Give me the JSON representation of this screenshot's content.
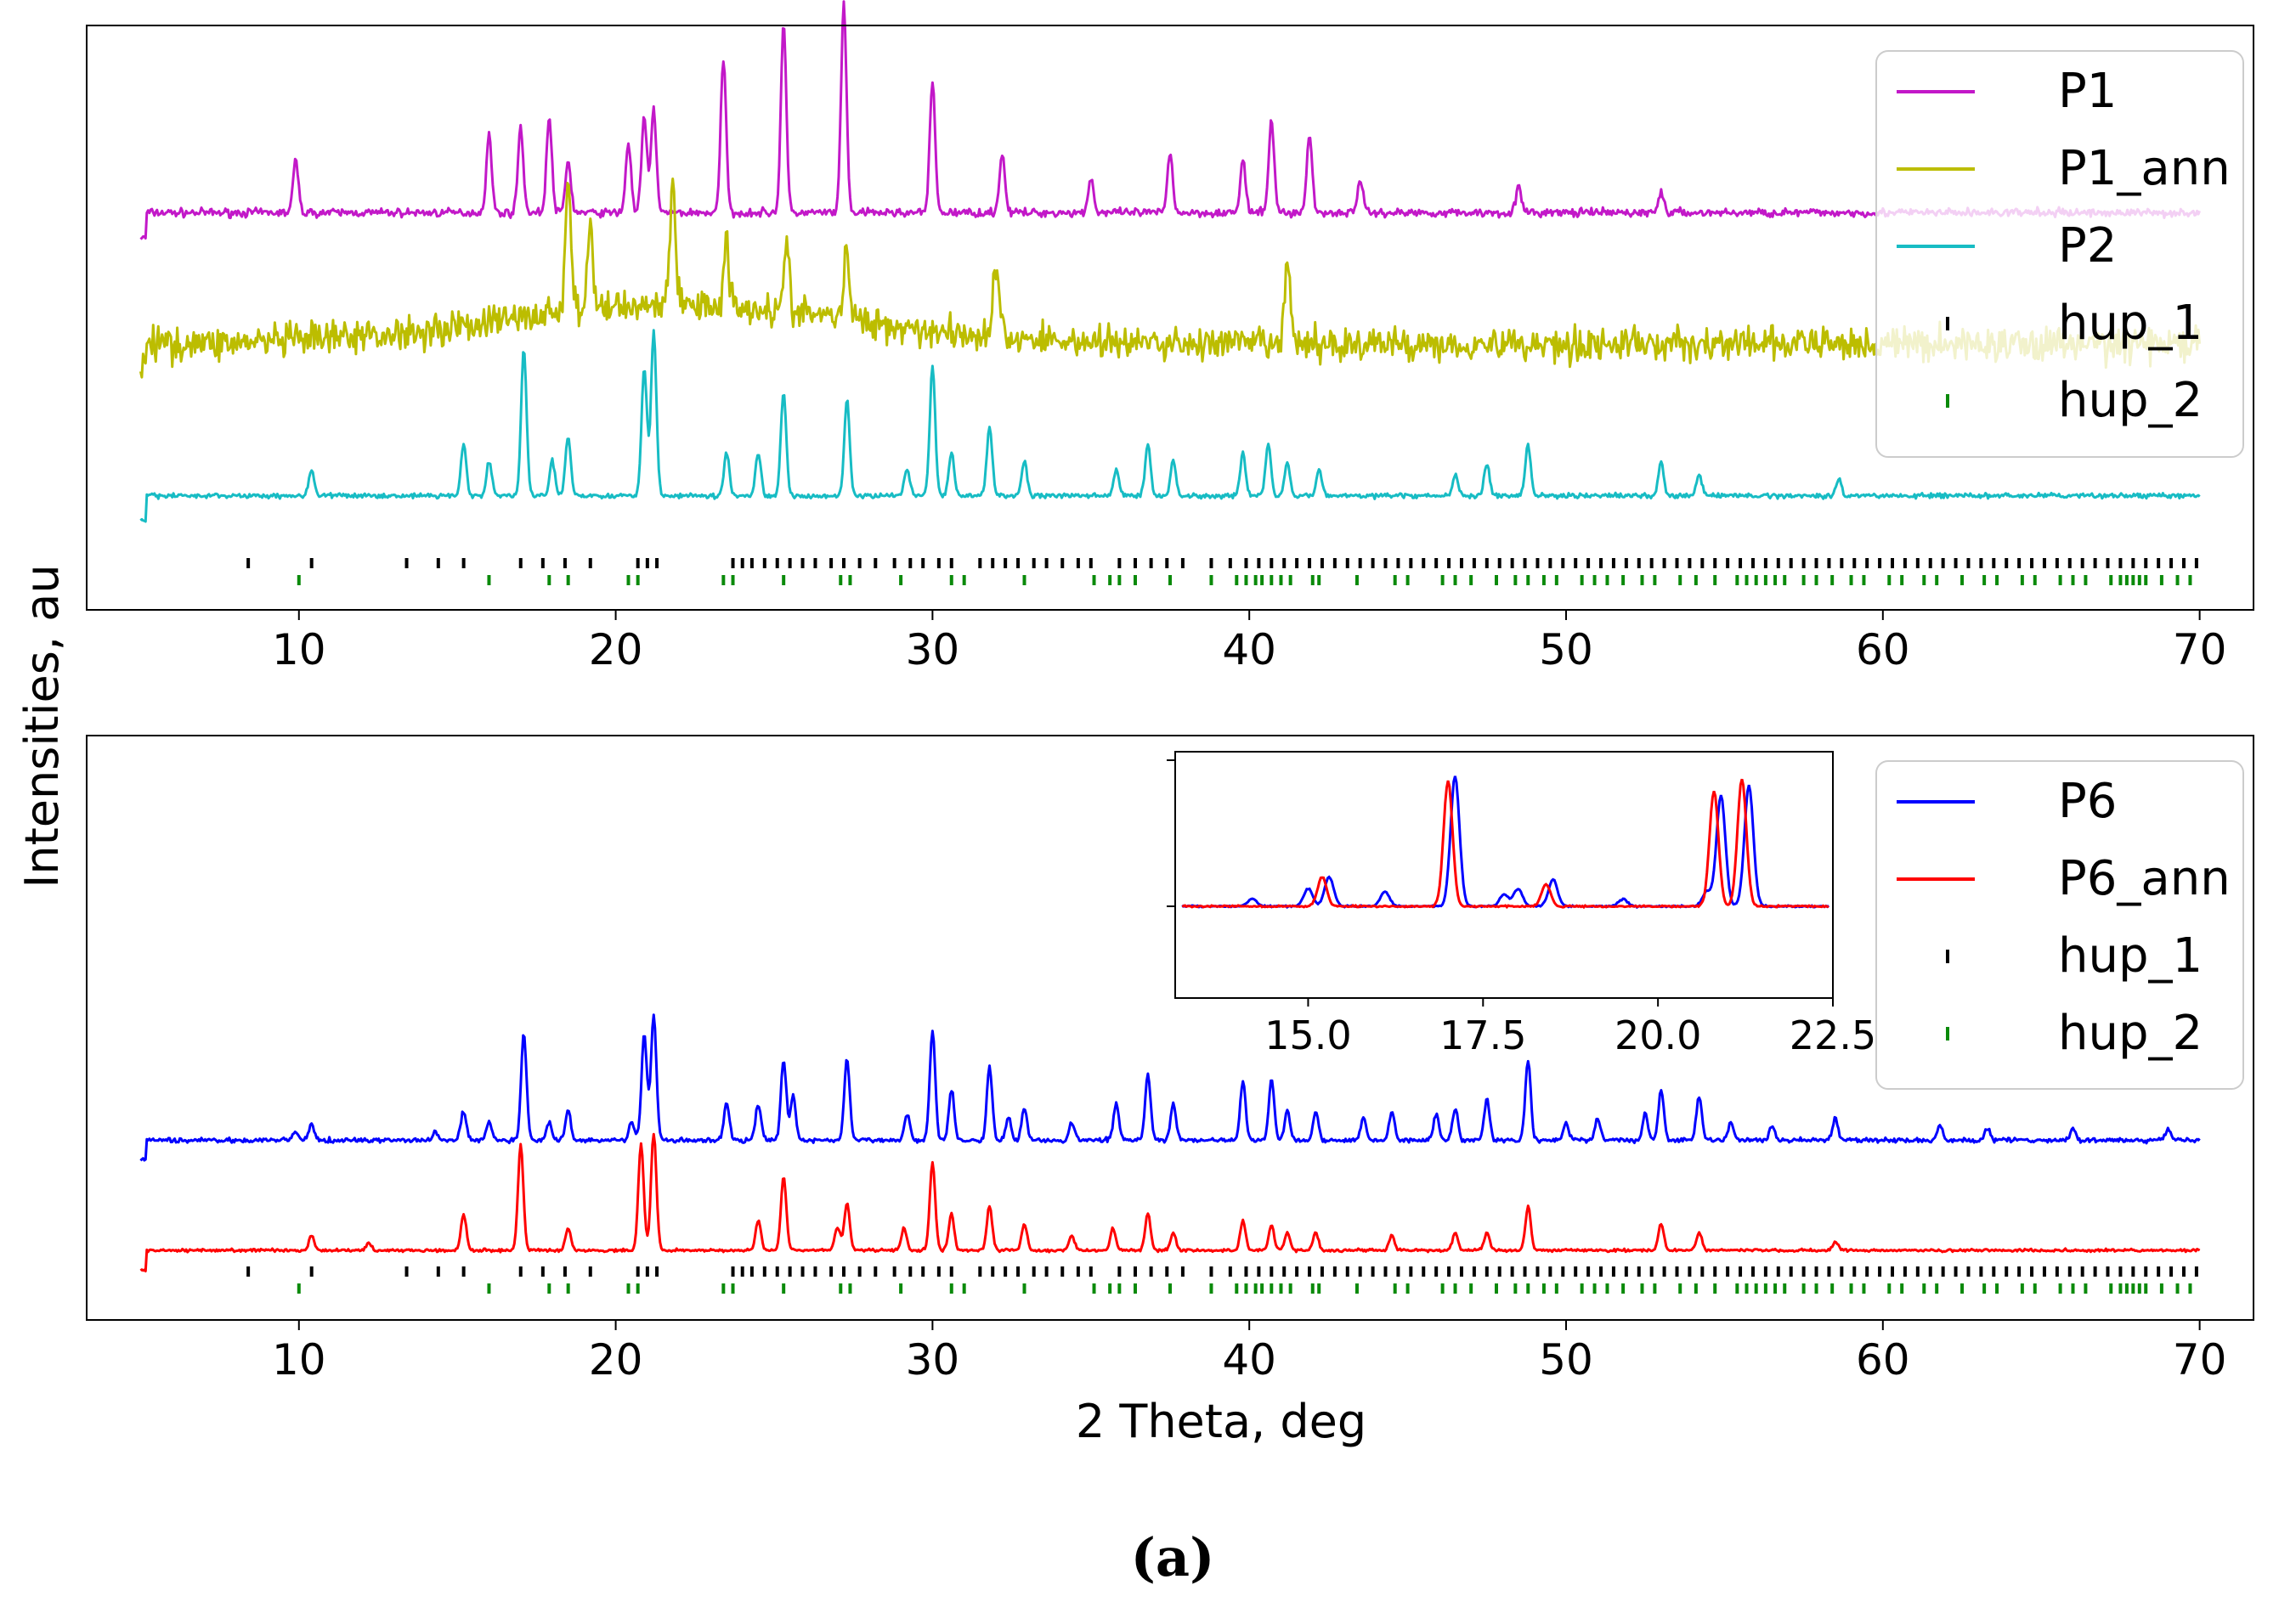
{
  "chart_data": [
    {
      "type": "line",
      "panel": "top",
      "xlabel": "2 Theta, deg",
      "ylabel": "Intensities, au",
      "xlim": [
        3.3,
        71.7
      ],
      "xticks": [
        10,
        20,
        30,
        40,
        50,
        60,
        70
      ],
      "legend_position": "top-right",
      "series": [
        {
          "name": "P1",
          "color": "#c218c8",
          "baseline": 0.68,
          "amplitude": 0.34,
          "noise": 0.012,
          "peaks": [
            [
              9.9,
              0.3
            ],
            [
              16.0,
              0.45
            ],
            [
              17.0,
              0.5
            ],
            [
              17.9,
              0.55
            ],
            [
              18.5,
              0.3
            ],
            [
              20.4,
              0.4
            ],
            [
              20.9,
              0.55
            ],
            [
              21.2,
              0.6
            ],
            [
              23.4,
              0.9
            ],
            [
              25.3,
              1.1
            ],
            [
              27.2,
              1.2
            ],
            [
              30.0,
              0.75
            ],
            [
              32.2,
              0.35
            ],
            [
              35.0,
              0.2
            ],
            [
              37.5,
              0.35
            ],
            [
              39.8,
              0.3
            ],
            [
              40.7,
              0.55
            ],
            [
              41.9,
              0.45
            ],
            [
              43.5,
              0.2
            ],
            [
              48.5,
              0.15
            ],
            [
              53.0,
              0.12
            ]
          ]
        },
        {
          "name": "P1_ann",
          "color": "#bcbd00",
          "baseline": 0.42,
          "amplitude": 0.3,
          "noise": 0.05,
          "peaks": [
            [
              18.5,
              0.9
            ],
            [
              19.2,
              0.5
            ],
            [
              21.8,
              0.8
            ],
            [
              23.5,
              0.4
            ],
            [
              25.4,
              0.4
            ],
            [
              27.3,
              0.45
            ],
            [
              32.0,
              0.5
            ],
            [
              41.2,
              0.55
            ]
          ]
        },
        {
          "name": "P2",
          "color": "#17bcc4",
          "baseline": 0.12,
          "amplitude": 0.34,
          "noise": 0.007,
          "peaks": [
            [
              10.4,
              0.15
            ],
            [
              15.2,
              0.3
            ],
            [
              16.0,
              0.2
            ],
            [
              17.1,
              0.85
            ],
            [
              18.0,
              0.2
            ],
            [
              18.5,
              0.35
            ],
            [
              20.9,
              0.75
            ],
            [
              21.2,
              0.95
            ],
            [
              23.5,
              0.25
            ],
            [
              24.5,
              0.25
            ],
            [
              25.3,
              0.6
            ],
            [
              27.3,
              0.55
            ],
            [
              29.2,
              0.15
            ],
            [
              30.0,
              0.75
            ],
            [
              30.6,
              0.25
            ],
            [
              31.8,
              0.4
            ],
            [
              32.9,
              0.2
            ],
            [
              35.8,
              0.15
            ],
            [
              36.8,
              0.3
            ],
            [
              37.6,
              0.2
            ],
            [
              39.8,
              0.25
            ],
            [
              40.6,
              0.3
            ],
            [
              41.2,
              0.2
            ],
            [
              42.2,
              0.15
            ],
            [
              46.5,
              0.12
            ],
            [
              47.5,
              0.18
            ],
            [
              48.8,
              0.3
            ],
            [
              53.0,
              0.2
            ],
            [
              54.2,
              0.12
            ],
            [
              58.6,
              0.1
            ]
          ]
        },
        {
          "name": "hup_1",
          "color": "#000000",
          "type": "ticks",
          "positions": [
            8.4,
            10.4,
            13.4,
            14.4,
            15.2,
            17.0,
            17.7,
            18.4,
            19.2,
            20.7,
            21.0,
            21.3,
            23.7,
            24.0,
            24.3,
            24.7,
            25.1,
            25.5,
            25.9,
            26.3,
            26.8,
            27.2,
            27.7,
            28.2,
            28.8,
            29.3,
            29.7,
            30.2,
            30.6,
            31.5,
            31.9,
            32.3,
            32.7,
            33.2,
            33.6,
            34.1,
            34.6,
            35.0,
            35.9,
            36.4,
            36.9,
            37.4,
            37.9,
            38.8,
            39.4,
            39.9,
            40.3,
            40.7,
            41.1,
            41.5,
            41.9,
            42.3,
            42.7,
            43.1,
            43.5,
            43.9,
            44.3,
            44.7,
            45.1,
            45.5,
            45.9,
            46.3,
            46.7,
            47.1,
            47.5,
            47.9,
            48.3,
            48.7,
            49.1,
            49.5,
            49.9,
            50.3,
            50.7,
            51.1,
            51.5,
            51.9,
            52.3,
            52.7,
            53.1,
            53.5,
            53.9,
            54.3,
            54.7,
            55.1,
            55.5,
            55.9,
            56.3,
            56.7,
            57.1,
            57.5,
            57.9,
            58.3,
            58.7,
            59.1,
            59.5,
            59.9,
            60.3,
            60.7,
            61.1,
            61.5,
            61.9,
            62.3,
            62.7,
            63.1,
            63.5,
            63.9,
            64.3,
            64.7,
            65.1,
            65.5,
            65.9,
            66.3,
            66.7,
            67.1,
            67.5,
            67.9,
            68.3,
            68.7,
            69.1,
            69.5,
            69.9
          ]
        },
        {
          "name": "hup_2",
          "color": "#0a8a0a",
          "type": "ticks",
          "positions": [
            10.0,
            16.0,
            17.9,
            18.5,
            20.4,
            20.7,
            23.4,
            23.7,
            25.3,
            27.1,
            27.4,
            29.0,
            30.6,
            31.0,
            32.9,
            35.1,
            35.6,
            35.9,
            36.4,
            37.5,
            38.8,
            39.6,
            39.9,
            40.2,
            40.4,
            40.7,
            41.0,
            41.3,
            42.0,
            42.2,
            43.4,
            44.6,
            45.0,
            46.1,
            46.5,
            47.0,
            47.8,
            48.4,
            48.8,
            49.3,
            49.7,
            50.5,
            50.9,
            51.3,
            51.8,
            52.4,
            52.8,
            53.6,
            54.1,
            54.7,
            55.4,
            55.7,
            56.0,
            56.3,
            56.6,
            56.9,
            57.5,
            57.9,
            58.4,
            59.0,
            59.4,
            60.2,
            60.6,
            61.3,
            61.7,
            62.5,
            63.2,
            63.6,
            64.4,
            64.8,
            65.6,
            66.0,
            66.4,
            67.2,
            67.5,
            67.7,
            67.9,
            68.1,
            68.3,
            68.8,
            69.3,
            69.7
          ]
        }
      ]
    },
    {
      "type": "line",
      "panel": "bottom",
      "xlabel": "2 Theta, deg",
      "ylabel": "Intensities, au",
      "xlim": [
        3.3,
        71.7
      ],
      "xticks": [
        10,
        20,
        30,
        40,
        50,
        60,
        70
      ],
      "legend_position": "top-right",
      "series": [
        {
          "name": "P6",
          "color": "#0000ff",
          "baseline": 0.37,
          "amplitude": 0.36,
          "noise": 0.008,
          "peaks": [
            [
              9.9,
              0.06
            ],
            [
              10.4,
              0.1
            ],
            [
              14.3,
              0.05
            ],
            [
              15.2,
              0.2
            ],
            [
              16.0,
              0.12
            ],
            [
              17.1,
              0.72
            ],
            [
              17.9,
              0.12
            ],
            [
              18.5,
              0.2
            ],
            [
              20.5,
              0.12
            ],
            [
              20.9,
              0.72
            ],
            [
              21.2,
              0.85
            ],
            [
              23.5,
              0.25
            ],
            [
              24.5,
              0.25
            ],
            [
              25.3,
              0.55
            ],
            [
              25.6,
              0.3
            ],
            [
              27.3,
              0.55
            ],
            [
              29.2,
              0.18
            ],
            [
              30.0,
              0.75
            ],
            [
              30.6,
              0.35
            ],
            [
              31.8,
              0.5
            ],
            [
              32.4,
              0.15
            ],
            [
              32.9,
              0.22
            ],
            [
              34.4,
              0.12
            ],
            [
              35.8,
              0.25
            ],
            [
              36.8,
              0.45
            ],
            [
              37.6,
              0.25
            ],
            [
              39.8,
              0.4
            ],
            [
              40.7,
              0.42
            ],
            [
              41.2,
              0.2
            ],
            [
              42.1,
              0.2
            ],
            [
              43.6,
              0.15
            ],
            [
              44.5,
              0.2
            ],
            [
              45.9,
              0.18
            ],
            [
              46.5,
              0.22
            ],
            [
              47.5,
              0.28
            ],
            [
              48.8,
              0.55
            ],
            [
              50.0,
              0.12
            ],
            [
              51.0,
              0.15
            ],
            [
              52.5,
              0.18
            ],
            [
              53.0,
              0.35
            ],
            [
              54.2,
              0.3
            ],
            [
              55.2,
              0.12
            ],
            [
              56.5,
              0.1
            ],
            [
              58.5,
              0.15
            ],
            [
              61.8,
              0.1
            ],
            [
              63.3,
              0.08
            ],
            [
              66.0,
              0.08
            ],
            [
              69.0,
              0.08
            ]
          ]
        },
        {
          "name": "P6_ann",
          "color": "#ff0000",
          "baseline": 0.1,
          "amplitude": 0.36,
          "noise": 0.005,
          "peaks": [
            [
              10.4,
              0.1
            ],
            [
              12.2,
              0.05
            ],
            [
              15.2,
              0.25
            ],
            [
              17.0,
              0.72
            ],
            [
              18.5,
              0.15
            ],
            [
              20.8,
              0.72
            ],
            [
              21.2,
              0.8
            ],
            [
              24.5,
              0.2
            ],
            [
              25.3,
              0.5
            ],
            [
              27.0,
              0.16
            ],
            [
              27.3,
              0.32
            ],
            [
              29.1,
              0.15
            ],
            [
              30.0,
              0.6
            ],
            [
              30.6,
              0.25
            ],
            [
              31.8,
              0.3
            ],
            [
              32.9,
              0.18
            ],
            [
              34.4,
              0.1
            ],
            [
              35.7,
              0.15
            ],
            [
              36.8,
              0.25
            ],
            [
              37.6,
              0.12
            ],
            [
              39.8,
              0.2
            ],
            [
              40.7,
              0.17
            ],
            [
              41.2,
              0.12
            ],
            [
              42.1,
              0.12
            ],
            [
              44.5,
              0.1
            ],
            [
              46.5,
              0.12
            ],
            [
              47.5,
              0.12
            ],
            [
              48.8,
              0.3
            ],
            [
              53.0,
              0.18
            ],
            [
              54.2,
              0.12
            ],
            [
              58.5,
              0.06
            ]
          ]
        },
        {
          "name": "hup_1",
          "color": "#000000",
          "type": "ticks"
        },
        {
          "name": "hup_2",
          "color": "#0a8a0a",
          "type": "ticks"
        }
      ]
    },
    {
      "type": "line",
      "panel": "inset",
      "xlim": [
        13.1,
        22.5
      ],
      "xticks": [
        15.0,
        17.5,
        20.0,
        22.5
      ],
      "xtick_labels": [
        "15.0",
        "17.5",
        "20.0",
        "22.5"
      ],
      "series": [
        {
          "name": "P6",
          "color": "#0000ff",
          "peaks": [
            [
              14.2,
              0.05
            ],
            [
              15.0,
              0.12
            ],
            [
              15.3,
              0.2
            ],
            [
              16.1,
              0.1
            ],
            [
              17.1,
              0.88
            ],
            [
              17.8,
              0.08
            ],
            [
              18.0,
              0.12
            ],
            [
              18.5,
              0.18
            ],
            [
              19.5,
              0.05
            ],
            [
              20.7,
              0.1
            ],
            [
              20.9,
              0.75
            ],
            [
              21.3,
              0.82
            ]
          ]
        },
        {
          "name": "P6_ann",
          "color": "#ff0000",
          "peaks": [
            [
              15.2,
              0.2
            ],
            [
              17.0,
              0.85
            ],
            [
              18.4,
              0.15
            ],
            [
              20.8,
              0.78
            ],
            [
              21.2,
              0.86
            ]
          ]
        }
      ]
    }
  ],
  "axes": {
    "ylabel": "Intensities, au",
    "xlabel": "2 Theta, deg",
    "xtick_labels": [
      "10",
      "20",
      "30",
      "40",
      "50",
      "60",
      "70"
    ]
  },
  "legends": {
    "top": [
      "P1",
      "P1_ann",
      "P2",
      "hup_1",
      "hup_2"
    ],
    "bottom": [
      "P6",
      "P6_ann",
      "hup_1",
      "hup_2"
    ]
  },
  "caption": "(a)"
}
